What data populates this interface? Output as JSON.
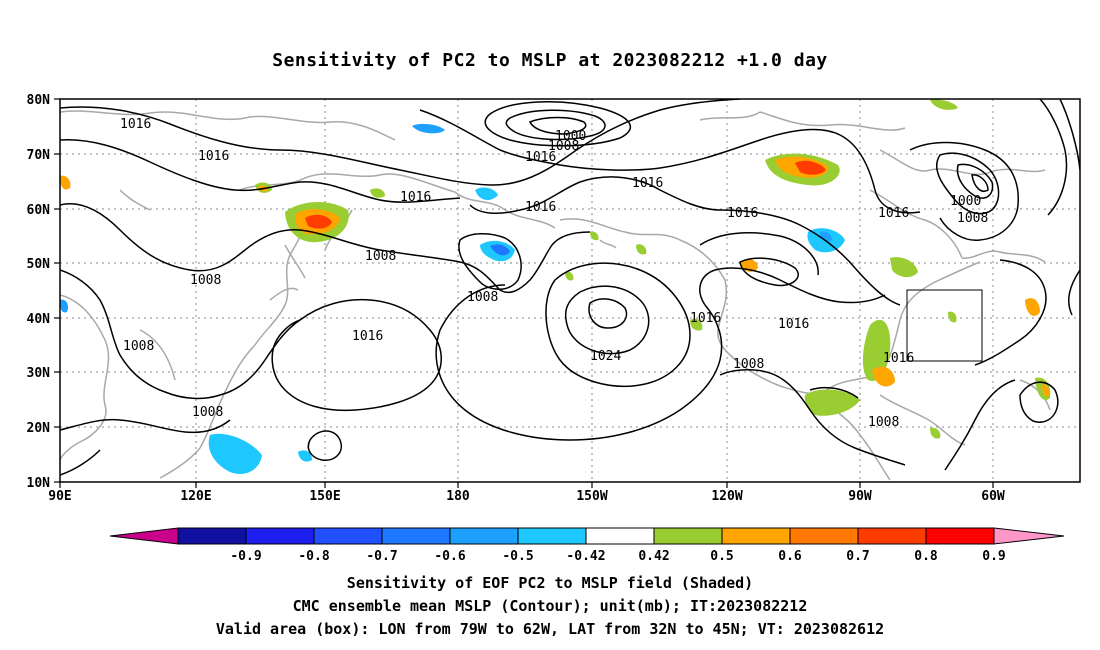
{
  "title": "Sensitivity of PC2 to MSLP at 2023082212 +1.0 day",
  "lat_ticks": [
    "80N",
    "70N",
    "60N",
    "50N",
    "40N",
    "30N",
    "20N",
    "10N"
  ],
  "lon_ticks": [
    "90E",
    "120E",
    "150E",
    "180",
    "150W",
    "120W",
    "90W",
    "60W"
  ],
  "contour_labels": [
    {
      "text": "1016",
      "anchor": "l1"
    },
    {
      "text": "1016",
      "anchor": "l2"
    },
    {
      "text": "1000",
      "anchor": "l3"
    },
    {
      "text": "1008",
      "anchor": "l4"
    },
    {
      "text": "1016",
      "anchor": "l5"
    },
    {
      "text": "1016",
      "anchor": "l6"
    },
    {
      "text": "1016",
      "anchor": "l7"
    },
    {
      "text": "1016",
      "anchor": "l8"
    },
    {
      "text": "1016",
      "anchor": "l9"
    },
    {
      "text": "1016",
      "anchor": "l10"
    },
    {
      "text": "1000",
      "anchor": "l11"
    },
    {
      "text": "1008",
      "anchor": "l12"
    },
    {
      "text": "1008",
      "anchor": "l13"
    },
    {
      "text": "1008",
      "anchor": "l14"
    },
    {
      "text": "1008",
      "anchor": "l15"
    },
    {
      "text": "1016",
      "anchor": "l16"
    },
    {
      "text": "1008",
      "anchor": "l17"
    },
    {
      "text": "1024",
      "anchor": "l18"
    },
    {
      "text": "1016",
      "anchor": "l19"
    },
    {
      "text": "1016",
      "anchor": "l20"
    },
    {
      "text": "1008",
      "anchor": "l21"
    },
    {
      "text": "1016",
      "anchor": "l22"
    },
    {
      "text": "1008",
      "anchor": "l23"
    },
    {
      "text": "1008",
      "anchor": "l24"
    }
  ],
  "colorbar": {
    "labels": [
      "-0.9",
      "-0.8",
      "-0.7",
      "-0.6",
      "-0.5",
      "-0.42",
      "0.42",
      "0.5",
      "0.6",
      "0.7",
      "0.8",
      "0.9"
    ],
    "colors": [
      "#1010a0",
      "#1e1ef0",
      "#2050ff",
      "#1e78ff",
      "#1ea0ff",
      "#1ec8ff",
      "#ffffff",
      "#9acd32",
      "#ffa500",
      "#ff7800",
      "#ff3c00",
      "#ff0000"
    ],
    "low_end": "#c8008c",
    "high_end": "#ff96c8"
  },
  "captions": {
    "line1": "Sensitivity of EOF PC2 to MSLP field (Shaded)",
    "line2": "CMC ensemble mean MSLP (Contour); unit(mb); IT:2023082212",
    "line3": "Valid area (box): LON from 79W to 62W, LAT from 32N to 45N; VT: 2023082612"
  }
}
